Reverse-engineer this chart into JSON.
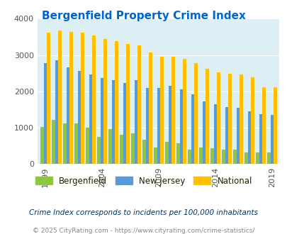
{
  "title": "Bergenfield Property Crime Index",
  "title_color": "#0066cc",
  "years": [
    1999,
    2000,
    2001,
    2002,
    2003,
    2004,
    2005,
    2006,
    2007,
    2008,
    2009,
    2010,
    2011,
    2012,
    2013,
    2014,
    2015,
    2016,
    2017,
    2018,
    2019
  ],
  "bergenfield": [
    1010,
    1220,
    1110,
    1110,
    1000,
    750,
    960,
    800,
    850,
    660,
    440,
    600,
    570,
    400,
    450,
    430,
    390,
    400,
    320,
    310,
    310
  ],
  "new_jersey": [
    2780,
    2850,
    2660,
    2560,
    2460,
    2360,
    2300,
    2230,
    2310,
    2090,
    2100,
    2160,
    2060,
    1920,
    1720,
    1640,
    1560,
    1550,
    1440,
    1360,
    1350
  ],
  "national": [
    3620,
    3670,
    3640,
    3610,
    3530,
    3450,
    3380,
    3300,
    3270,
    3060,
    2960,
    2960,
    2900,
    2770,
    2620,
    2520,
    2490,
    2460,
    2390,
    2120,
    2110
  ],
  "bergenfield_color": "#8dc63f",
  "nj_color": "#5b9bd5",
  "national_color": "#ffc000",
  "plot_bg": "#ddeef5",
  "ylim": [
    0,
    4000
  ],
  "yticks": [
    0,
    1000,
    2000,
    3000,
    4000
  ],
  "tick_years": [
    1999,
    2004,
    2009,
    2014,
    2019
  ],
  "subtitle": "Crime Index corresponds to incidents per 100,000 inhabitants",
  "footer": "© 2025 CityRating.com - https://www.cityrating.com/crime-statistics/",
  "subtitle_color": "#003366",
  "footer_color": "#888888",
  "legend_labels": [
    "Bergenfield",
    "New Jersey",
    "National"
  ]
}
